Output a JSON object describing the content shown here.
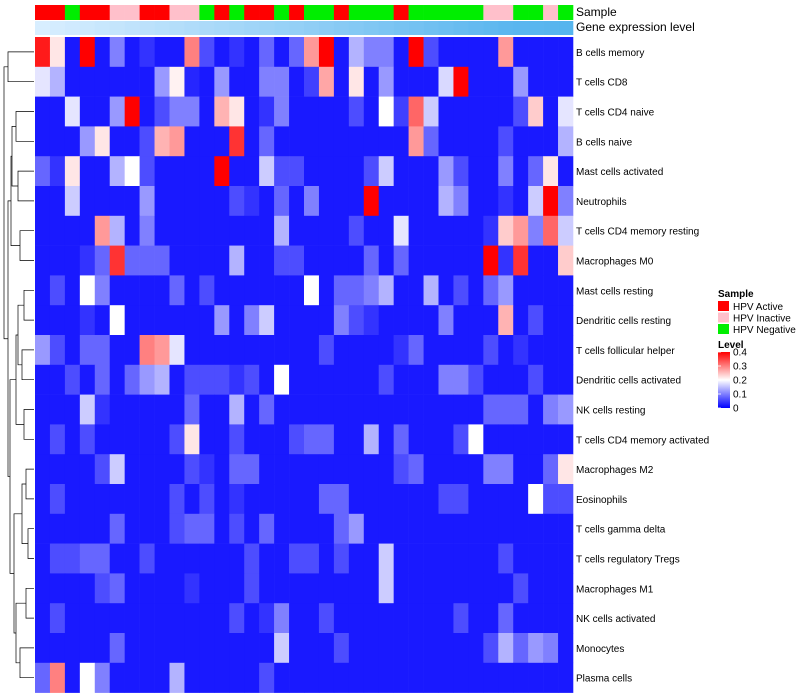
{
  "chart_data": {
    "type": "heatmap",
    "title": "",
    "annotation_tracks": [
      "Sample",
      "Gene expression level"
    ],
    "sample_annotation": [
      "HPV Active",
      "HPV Active",
      "HPV Negative",
      "HPV Active",
      "HPV Active",
      "HPV Inactive",
      "HPV Inactive",
      "HPV Active",
      "HPV Active",
      "HPV Inactive",
      "HPV Inactive",
      "HPV Negative",
      "HPV Active",
      "HPV Negative",
      "HPV Active",
      "HPV Active",
      "HPV Negative",
      "HPV Active",
      "HPV Negative",
      "HPV Negative",
      "HPV Active",
      "HPV Negative",
      "HPV Negative",
      "HPV Negative",
      "HPV Active",
      "HPV Negative",
      "HPV Negative",
      "HPV Negative",
      "HPV Negative",
      "HPV Negative",
      "HPV Inactive",
      "HPV Inactive",
      "HPV Negative",
      "HPV Negative",
      "HPV Inactive",
      "HPV Negative"
    ],
    "expression_level": [
      0.02,
      0.05,
      0.08,
      0.11,
      0.14,
      0.17,
      0.2,
      0.23,
      0.26,
      0.29,
      0.32,
      0.35,
      0.38,
      0.41,
      0.44,
      0.47,
      0.5,
      0.53,
      0.56,
      0.59,
      0.62,
      0.65,
      0.68,
      0.71,
      0.74,
      0.77,
      0.8,
      0.83,
      0.86,
      0.89,
      0.92,
      0.95,
      0.96,
      0.97,
      0.98,
      0.99
    ],
    "rows": [
      "B cells memory",
      "T cells CD8",
      "T cells CD4 naive",
      "B cells naive",
      "Mast cells activated",
      "Neutrophils",
      "T cells CD4 memory resting",
      "Macrophages M0",
      "Mast cells resting",
      "Dendritic cells resting",
      "T cells follicular helper",
      "Dendritic cells activated",
      "NK cells resting",
      "T cells CD4 memory activated",
      "Macrophages M2",
      "Eosinophils",
      "T cells gamma delta",
      "T cells regulatory  Tregs",
      "Macrophages M1",
      "NK cells activated",
      "Monocytes",
      "Plasma cells"
    ],
    "values": [
      [
        0.38,
        0.22,
        0.02,
        0.4,
        0.02,
        0.1,
        0.02,
        0.04,
        0.02,
        0.02,
        0.3,
        0.06,
        0.02,
        0.04,
        0.02,
        0.08,
        0.02,
        0.08,
        0.28,
        0.4,
        0.02,
        0.14,
        0.1,
        0.1,
        0.02,
        0.4,
        0.06,
        0.02,
        0.02,
        0.02,
        0.02,
        0.28,
        0.02,
        0.02,
        0.02,
        0.02
      ],
      [
        0.18,
        0.14,
        0.02,
        0.02,
        0.02,
        0.02,
        0.02,
        0.02,
        0.12,
        0.21,
        0.03,
        0.02,
        0.12,
        0.02,
        0.02,
        0.1,
        0.1,
        0.02,
        0.05,
        0.27,
        0.02,
        0.22,
        0.02,
        0.12,
        0.02,
        0.02,
        0.02,
        0.17,
        0.4,
        0.02,
        0.02,
        0.02,
        0.12,
        0.02,
        0.02,
        0.02
      ],
      [
        0.02,
        0.02,
        0.18,
        0.02,
        0.02,
        0.12,
        0.4,
        0.02,
        0.06,
        0.1,
        0.1,
        0.02,
        0.26,
        0.22,
        0.02,
        0.04,
        0.1,
        0.02,
        0.02,
        0.02,
        0.02,
        0.06,
        0.02,
        0.2,
        0.05,
        0.32,
        0.16,
        0.02,
        0.02,
        0.02,
        0.02,
        0.02,
        0.06,
        0.24,
        0.02,
        0.18
      ],
      [
        0.02,
        0.02,
        0.02,
        0.12,
        0.22,
        0.02,
        0.02,
        0.06,
        0.26,
        0.28,
        0.02,
        0.02,
        0.02,
        0.36,
        0.02,
        0.08,
        0.02,
        0.02,
        0.02,
        0.02,
        0.02,
        0.02,
        0.02,
        0.02,
        0.02,
        0.28,
        0.08,
        0.02,
        0.02,
        0.02,
        0.02,
        0.06,
        0.02,
        0.02,
        0.02,
        0.14
      ],
      [
        0.08,
        0.04,
        0.22,
        0.02,
        0.02,
        0.14,
        0.2,
        0.06,
        0.02,
        0.02,
        0.02,
        0.02,
        0.4,
        0.02,
        0.02,
        0.16,
        0.06,
        0.06,
        0.02,
        0.02,
        0.02,
        0.02,
        0.06,
        0.16,
        0.02,
        0.02,
        0.02,
        0.12,
        0.06,
        0.02,
        0.02,
        0.1,
        0.02,
        0.08,
        0.22,
        0.02
      ],
      [
        0.02,
        0.02,
        0.16,
        0.02,
        0.02,
        0.02,
        0.02,
        0.12,
        0.02,
        0.02,
        0.02,
        0.02,
        0.02,
        0.06,
        0.04,
        0.02,
        0.08,
        0.02,
        0.1,
        0.02,
        0.02,
        0.02,
        0.4,
        0.02,
        0.02,
        0.02,
        0.02,
        0.14,
        0.1,
        0.02,
        0.02,
        0.04,
        0.02,
        0.16,
        0.4,
        0.1
      ],
      [
        0.02,
        0.02,
        0.02,
        0.02,
        0.28,
        0.14,
        0.02,
        0.1,
        0.02,
        0.02,
        0.02,
        0.02,
        0.02,
        0.02,
        0.02,
        0.02,
        0.14,
        0.02,
        0.02,
        0.02,
        0.02,
        0.06,
        0.02,
        0.02,
        0.18,
        0.02,
        0.02,
        0.02,
        0.02,
        0.02,
        0.04,
        0.24,
        0.28,
        0.1,
        0.32,
        0.16
      ],
      [
        0.02,
        0.02,
        0.02,
        0.04,
        0.08,
        0.36,
        0.08,
        0.08,
        0.08,
        0.02,
        0.02,
        0.02,
        0.02,
        0.14,
        0.02,
        0.02,
        0.06,
        0.06,
        0.02,
        0.02,
        0.02,
        0.02,
        0.08,
        0.02,
        0.08,
        0.02,
        0.02,
        0.02,
        0.02,
        0.02,
        0.4,
        0.04,
        0.36,
        0.02,
        0.02,
        0.24
      ],
      [
        0.02,
        0.06,
        0.02,
        0.2,
        0.1,
        0.02,
        0.02,
        0.02,
        0.02,
        0.08,
        0.02,
        0.06,
        0.02,
        0.02,
        0.02,
        0.02,
        0.02,
        0.02,
        0.2,
        0.02,
        0.08,
        0.08,
        0.1,
        0.14,
        0.02,
        0.02,
        0.14,
        0.02,
        0.06,
        0.02,
        0.08,
        0.12,
        0.02,
        0.02,
        0.02,
        0.02
      ],
      [
        0.02,
        0.02,
        0.02,
        0.04,
        0.02,
        0.2,
        0.02,
        0.02,
        0.02,
        0.02,
        0.02,
        0.02,
        0.12,
        0.02,
        0.1,
        0.16,
        0.02,
        0.02,
        0.02,
        0.02,
        0.1,
        0.06,
        0.04,
        0.02,
        0.02,
        0.02,
        0.02,
        0.1,
        0.02,
        0.02,
        0.02,
        0.26,
        0.02,
        0.06,
        0.02,
        0.02
      ],
      [
        0.12,
        0.06,
        0.02,
        0.08,
        0.08,
        0.02,
        0.02,
        0.3,
        0.28,
        0.18,
        0.02,
        0.02,
        0.02,
        0.02,
        0.02,
        0.02,
        0.02,
        0.02,
        0.02,
        0.06,
        0.02,
        0.02,
        0.02,
        0.02,
        0.04,
        0.08,
        0.02,
        0.02,
        0.02,
        0.02,
        0.06,
        0.02,
        0.04,
        0.02,
        0.02,
        0.02
      ],
      [
        0.02,
        0.02,
        0.06,
        0.02,
        0.08,
        0.02,
        0.08,
        0.12,
        0.14,
        0.02,
        0.06,
        0.06,
        0.06,
        0.04,
        0.06,
        0.02,
        0.2,
        0.02,
        0.02,
        0.02,
        0.02,
        0.02,
        0.02,
        0.06,
        0.02,
        0.02,
        0.02,
        0.1,
        0.1,
        0.06,
        0.02,
        0.02,
        0.02,
        0.06,
        0.02,
        0.02
      ],
      [
        0.02,
        0.02,
        0.02,
        0.16,
        0.04,
        0.02,
        0.02,
        0.02,
        0.02,
        0.02,
        0.08,
        0.02,
        0.02,
        0.14,
        0.02,
        0.08,
        0.02,
        0.02,
        0.02,
        0.02,
        0.02,
        0.02,
        0.02,
        0.02,
        0.02,
        0.02,
        0.02,
        0.02,
        0.02,
        0.02,
        0.08,
        0.08,
        0.08,
        0.02,
        0.1,
        0.12
      ],
      [
        0.02,
        0.06,
        0.02,
        0.06,
        0.02,
        0.02,
        0.02,
        0.02,
        0.02,
        0.06,
        0.22,
        0.02,
        0.02,
        0.06,
        0.02,
        0.02,
        0.02,
        0.06,
        0.08,
        0.08,
        0.02,
        0.02,
        0.14,
        0.02,
        0.08,
        0.02,
        0.02,
        0.02,
        0.06,
        0.2,
        0.02,
        0.02,
        0.02,
        0.02,
        0.02,
        0.02
      ],
      [
        0.02,
        0.02,
        0.02,
        0.02,
        0.06,
        0.16,
        0.02,
        0.02,
        0.02,
        0.02,
        0.06,
        0.04,
        0.02,
        0.08,
        0.08,
        0.02,
        0.02,
        0.02,
        0.02,
        0.02,
        0.02,
        0.02,
        0.02,
        0.02,
        0.06,
        0.08,
        0.02,
        0.02,
        0.02,
        0.02,
        0.1,
        0.1,
        0.02,
        0.02,
        0.08,
        0.22
      ],
      [
        0.02,
        0.06,
        0.02,
        0.02,
        0.02,
        0.02,
        0.02,
        0.02,
        0.02,
        0.06,
        0.02,
        0.06,
        0.02,
        0.04,
        0.02,
        0.02,
        0.02,
        0.02,
        0.02,
        0.08,
        0.08,
        0.02,
        0.02,
        0.02,
        0.02,
        0.02,
        0.02,
        0.06,
        0.06,
        0.02,
        0.02,
        0.02,
        0.02,
        0.2,
        0.06,
        0.06
      ],
      [
        0.02,
        0.02,
        0.02,
        0.02,
        0.02,
        0.08,
        0.02,
        0.02,
        0.02,
        0.06,
        0.08,
        0.08,
        0.02,
        0.06,
        0.02,
        0.08,
        0.02,
        0.02,
        0.02,
        0.02,
        0.08,
        0.12,
        0.02,
        0.02,
        0.02,
        0.02,
        0.02,
        0.02,
        0.02,
        0.02,
        0.02,
        0.02,
        0.02,
        0.02,
        0.02,
        0.02
      ],
      [
        0.02,
        0.06,
        0.06,
        0.08,
        0.08,
        0.02,
        0.02,
        0.06,
        0.02,
        0.02,
        0.02,
        0.02,
        0.02,
        0.02,
        0.06,
        0.02,
        0.02,
        0.06,
        0.06,
        0.02,
        0.06,
        0.02,
        0.02,
        0.16,
        0.02,
        0.02,
        0.02,
        0.02,
        0.02,
        0.02,
        0.02,
        0.06,
        0.02,
        0.02,
        0.02,
        0.02
      ],
      [
        0.02,
        0.02,
        0.02,
        0.02,
        0.06,
        0.08,
        0.02,
        0.02,
        0.02,
        0.02,
        0.04,
        0.02,
        0.02,
        0.02,
        0.06,
        0.02,
        0.02,
        0.02,
        0.02,
        0.02,
        0.02,
        0.02,
        0.02,
        0.16,
        0.02,
        0.02,
        0.02,
        0.02,
        0.02,
        0.02,
        0.02,
        0.02,
        0.06,
        0.02,
        0.02,
        0.02
      ],
      [
        0.02,
        0.06,
        0.02,
        0.02,
        0.02,
        0.02,
        0.02,
        0.02,
        0.02,
        0.02,
        0.02,
        0.02,
        0.02,
        0.06,
        0.02,
        0.04,
        0.1,
        0.02,
        0.02,
        0.06,
        0.02,
        0.02,
        0.02,
        0.02,
        0.02,
        0.02,
        0.02,
        0.02,
        0.06,
        0.02,
        0.02,
        0.08,
        0.02,
        0.02,
        0.02,
        0.02
      ],
      [
        0.02,
        0.02,
        0.02,
        0.02,
        0.02,
        0.08,
        0.02,
        0.02,
        0.02,
        0.02,
        0.02,
        0.02,
        0.02,
        0.02,
        0.02,
        0.02,
        0.16,
        0.02,
        0.02,
        0.02,
        0.06,
        0.02,
        0.02,
        0.02,
        0.02,
        0.02,
        0.02,
        0.02,
        0.02,
        0.02,
        0.06,
        0.14,
        0.08,
        0.12,
        0.1,
        0.02
      ],
      [
        0.08,
        0.3,
        0.02,
        0.2,
        0.1,
        0.02,
        0.02,
        0.02,
        0.02,
        0.14,
        0.02,
        0.02,
        0.02,
        0.02,
        0.02,
        0.06,
        0.02,
        0.02,
        0.02,
        0.02,
        0.02,
        0.02,
        0.02,
        0.02,
        0.02,
        0.02,
        0.02,
        0.02,
        0.02,
        0.02,
        0.02,
        0.02,
        0.02,
        0.02,
        0.02,
        0.02
      ]
    ],
    "legends": {
      "sample_title": "Sample",
      "sample_items": [
        {
          "label": "HPV Active",
          "color": "#ff0000"
        },
        {
          "label": "HPV Inactive",
          "color": "#ffc0cb"
        },
        {
          "label": "HPV Negative",
          "color": "#00ee00"
        }
      ],
      "level_title": "Level",
      "level_ticks": [
        "0.4",
        "0.3",
        "0.2",
        "0.1",
        "0"
      ],
      "level_tick_values": [
        0.4,
        0.3,
        0.2,
        0.1,
        0
      ],
      "level_range": [
        0,
        0.4
      ]
    },
    "colors": {
      "low": "#0000ff",
      "mid": "#ffffff",
      "high": "#ff0000",
      "expr_low": "#dbefff",
      "expr_high": "#55b4ee"
    }
  }
}
